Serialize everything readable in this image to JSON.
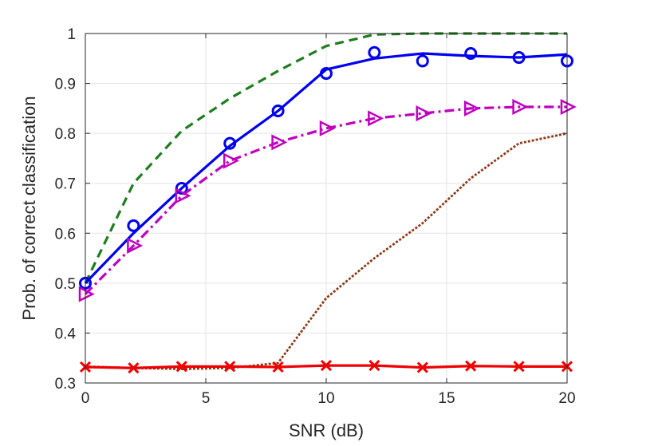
{
  "chart_data": {
    "type": "line",
    "title": "",
    "xlabel": "SNR (dB)",
    "ylabel": "Prob. of correct classification",
    "xlim": [
      0,
      20
    ],
    "ylim": [
      0.3,
      1
    ],
    "xticks": [
      0,
      5,
      10,
      15,
      20
    ],
    "xtick_labels": [
      "0",
      "5",
      "10",
      "15",
      "20"
    ],
    "yticks": [
      0.3,
      0.4,
      0.5,
      0.6,
      0.7,
      0.8,
      0.9,
      1
    ],
    "ytick_labels": [
      "0.3",
      "0.4",
      "0.5",
      "0.6",
      "0.7",
      "0.8",
      "0.9",
      "1"
    ],
    "grid": true,
    "series": [
      {
        "name": "green-dashed",
        "color": "#1e7d1e",
        "line_style": "dashed",
        "marker": "none",
        "x": [
          0,
          2,
          4,
          6,
          8,
          10,
          12,
          14,
          16,
          18,
          20
        ],
        "y": [
          0.5,
          0.7,
          0.805,
          0.87,
          0.925,
          0.975,
          0.998,
          1.0,
          1.0,
          1.0,
          1.0
        ]
      },
      {
        "name": "blue-solid-circle",
        "color": "#0000ee",
        "line_style": "solid",
        "marker": "circle",
        "x": [
          0,
          2,
          4,
          6,
          8,
          10,
          12,
          14,
          16,
          18,
          20
        ],
        "y": [
          0.5,
          0.6,
          0.69,
          0.775,
          0.845,
          0.928,
          0.95,
          0.96,
          0.955,
          0.952,
          0.958
        ],
        "marker_y": [
          0.5,
          0.615,
          0.69,
          0.78,
          0.845,
          0.92,
          0.962,
          0.945,
          0.96,
          0.952,
          0.945
        ]
      },
      {
        "name": "magenta-dashdot-triangle",
        "color": "#bf00bf",
        "line_style": "dashdot",
        "marker": "triangle-right",
        "x": [
          0,
          2,
          4,
          6,
          8,
          10,
          12,
          14,
          16,
          18,
          20
        ],
        "y": [
          0.478,
          0.575,
          0.675,
          0.745,
          0.782,
          0.81,
          0.83,
          0.84,
          0.85,
          0.853,
          0.853
        ]
      },
      {
        "name": "brown-dotted",
        "color": "#8b3a1a",
        "line_style": "dotted",
        "marker": "none",
        "x": [
          0,
          2,
          4,
          6,
          8,
          10,
          12,
          14,
          16,
          18,
          20
        ],
        "y": [
          0.333,
          0.33,
          0.328,
          0.33,
          0.34,
          0.47,
          0.55,
          0.62,
          0.71,
          0.78,
          0.8
        ]
      },
      {
        "name": "red-solid-x",
        "color": "#ee0000",
        "line_style": "solid",
        "marker": "x",
        "x": [
          0,
          2,
          4,
          6,
          8,
          10,
          12,
          14,
          16,
          18,
          20
        ],
        "y": [
          0.332,
          0.33,
          0.333,
          0.333,
          0.332,
          0.335,
          0.335,
          0.331,
          0.334,
          0.333,
          0.333
        ]
      }
    ]
  }
}
